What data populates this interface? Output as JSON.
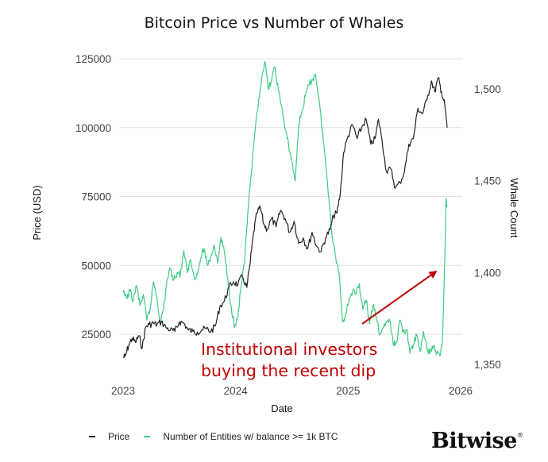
{
  "chart_data": {
    "type": "line",
    "title": "Bitcoin Price vs Number of Whales",
    "xlabel": "Date",
    "ylabel_left": "Price (USD)",
    "ylabel_right": "Whale Count",
    "x_ticks": [
      "2023",
      "2024",
      "2025",
      "2026"
    ],
    "xlim": [
      2023.0,
      2026.0
    ],
    "y_left_ticks": [
      "125000",
      "100000",
      "75000",
      "50000",
      "25000"
    ],
    "y_left_tick_values": [
      125000,
      100000,
      75000,
      50000,
      25000
    ],
    "ylim_left": [
      14500,
      125000
    ],
    "y_right_ticks": [
      "1,500",
      "1,450",
      "1,400",
      "1,350"
    ],
    "y_right_tick_values": [
      1500,
      1450,
      1400,
      1350
    ],
    "ylim_right": [
      1346,
      1516
    ],
    "grid": "horizontal",
    "legend_position": "bottom-left",
    "series": [
      {
        "name": "Price",
        "axis": "left",
        "color": "#222222",
        "x": [
          2023.0,
          2023.02,
          2023.05,
          2023.08,
          2023.11,
          2023.14,
          2023.17,
          2023.2,
          2023.23,
          2023.27,
          2023.3,
          2023.34,
          2023.38,
          2023.42,
          2023.46,
          2023.5,
          2023.54,
          2023.58,
          2023.62,
          2023.66,
          2023.7,
          2023.74,
          2023.78,
          2023.82,
          2023.86,
          2023.9,
          2023.94,
          2023.98,
          2024.02,
          2024.06,
          2024.1,
          2024.13,
          2024.16,
          2024.19,
          2024.22,
          2024.25,
          2024.28,
          2024.32,
          2024.36,
          2024.4,
          2024.44,
          2024.48,
          2024.52,
          2024.56,
          2024.6,
          2024.64,
          2024.68,
          2024.72,
          2024.76,
          2024.8,
          2024.84,
          2024.87,
          2024.9,
          2024.93,
          2024.96,
          2025.0,
          2025.04,
          2025.08,
          2025.12,
          2025.16,
          2025.2,
          2025.24,
          2025.27,
          2025.3,
          2025.34,
          2025.38,
          2025.42,
          2025.46,
          2025.5,
          2025.54,
          2025.58,
          2025.62,
          2025.66,
          2025.7,
          2025.74,
          2025.77,
          2025.8,
          2025.83,
          2025.86,
          2025.88
        ],
        "y": [
          16500,
          17000,
          21000,
          23500,
          22000,
          24500,
          20000,
          27500,
          28500,
          29000,
          28500,
          29500,
          27500,
          26500,
          26000,
          29500,
          29000,
          26500,
          26000,
          25800,
          26500,
          27000,
          26000,
          28000,
          35000,
          37000,
          42000,
          44000,
          43000,
          46000,
          42000,
          51000,
          62000,
          69000,
          71000,
          65000,
          63000,
          67000,
          64000,
          70000,
          67000,
          62000,
          66000,
          58000,
          60000,
          56000,
          62000,
          57000,
          55000,
          60000,
          63000,
          68000,
          69000,
          76000,
          91000,
          97000,
          101000,
          96000,
          100000,
          103000,
          94000,
          96000,
          103000,
          96000,
          84000,
          85000,
          78000,
          80000,
          84000,
          94000,
          96000,
          107000,
          105000,
          110000,
          117000,
          113000,
          118000,
          113000,
          108000,
          100000
        ]
      },
      {
        "name": "Number of Entities w/ balance >= 1k BTC",
        "axis": "right",
        "color": "#3ecb85",
        "x": [
          2023.0,
          2023.03,
          2023.06,
          2023.09,
          2023.12,
          2023.15,
          2023.18,
          2023.21,
          2023.24,
          2023.27,
          2023.3,
          2023.33,
          2023.36,
          2023.39,
          2023.42,
          2023.45,
          2023.48,
          2023.51,
          2023.54,
          2023.57,
          2023.6,
          2023.63,
          2023.66,
          2023.69,
          2023.72,
          2023.75,
          2023.78,
          2023.81,
          2023.84,
          2023.87,
          2023.9,
          2023.93,
          2023.96,
          2023.99,
          2024.02,
          2024.05,
          2024.08,
          2024.11,
          2024.14,
          2024.17,
          2024.2,
          2024.23,
          2024.26,
          2024.29,
          2024.32,
          2024.35,
          2024.38,
          2024.41,
          2024.44,
          2024.47,
          2024.5,
          2024.53,
          2024.56,
          2024.59,
          2024.62,
          2024.65,
          2024.68,
          2024.71,
          2024.74,
          2024.77,
          2024.8,
          2024.83,
          2024.86,
          2024.89,
          2024.92,
          2024.95,
          2024.98,
          2025.01,
          2025.04,
          2025.07,
          2025.1,
          2025.13,
          2025.16,
          2025.19,
          2025.22,
          2025.25,
          2025.28,
          2025.31,
          2025.34,
          2025.37,
          2025.4,
          2025.43,
          2025.46,
          2025.49,
          2025.52,
          2025.55,
          2025.58,
          2025.61,
          2025.64,
          2025.67,
          2025.7,
          2025.73,
          2025.76,
          2025.79,
          2025.82,
          2025.84,
          2025.86,
          2025.87,
          2025.88
        ],
        "y": [
          1389,
          1386,
          1390,
          1385,
          1393,
          1382,
          1388,
          1374,
          1380,
          1395,
          1387,
          1373,
          1380,
          1396,
          1402,
          1396,
          1400,
          1399,
          1412,
          1400,
          1407,
          1398,
          1399,
          1408,
          1413,
          1404,
          1409,
          1415,
          1405,
          1419,
          1411,
          1397,
          1382,
          1370,
          1376,
          1393,
          1405,
          1434,
          1454,
          1476,
          1490,
          1506,
          1515,
          1500,
          1505,
          1512,
          1499,
          1490,
          1478,
          1470,
          1460,
          1450,
          1480,
          1488,
          1496,
          1502,
          1505,
          1508,
          1495,
          1478,
          1460,
          1440,
          1419,
          1408,
          1400,
          1373,
          1378,
          1386,
          1390,
          1388,
          1394,
          1380,
          1385,
          1372,
          1382,
          1376,
          1366,
          1370,
          1373,
          1374,
          1361,
          1362,
          1374,
          1368,
          1369,
          1356,
          1361,
          1366,
          1357,
          1368,
          1358,
          1357,
          1360,
          1356,
          1355,
          1365,
          1410,
          1440,
          1436
        ]
      }
    ],
    "annotation": {
      "lines": [
        "Institutional investors",
        "buying the recent dip"
      ],
      "color": "#c00000",
      "arrow_to": {
        "x": 2025.82,
        "y_right": 1401
      }
    },
    "legend": [
      {
        "label": "Price",
        "color": "#222222"
      },
      {
        "label": "Number of Entities w/ balance >= 1k BTC",
        "color": "#3ecb85"
      }
    ]
  },
  "branding": {
    "logo_text": "Bitwise",
    "mark": "®"
  }
}
